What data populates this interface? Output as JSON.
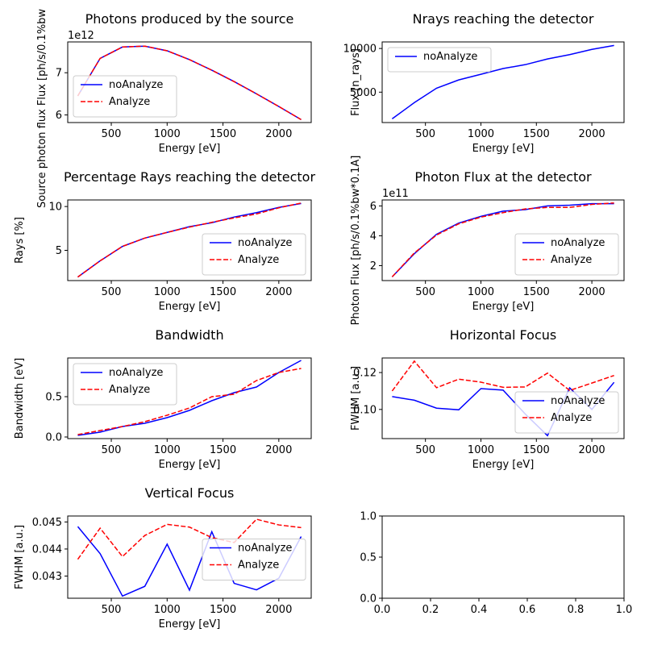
{
  "chart_data": [
    {
      "type": "line",
      "title": "Photons produced by the source",
      "xlabel": "Energy [eV]",
      "ylabel": "Source photon flux Flux [ph/s/0.1%bw",
      "offset_text": "1e12",
      "xlim": [
        110,
        2290
      ],
      "ylim": [
        5.82,
        7.73
      ],
      "xticks": [
        {
          "v": 500,
          "label": "500"
        },
        {
          "v": 1000,
          "label": "1000"
        },
        {
          "v": 1500,
          "label": "1500"
        },
        {
          "v": 2000,
          "label": "2000"
        }
      ],
      "yticks": [
        {
          "v": 6,
          "label": "6"
        },
        {
          "v": 7,
          "label": "7"
        }
      ],
      "legend": "lower-left",
      "series": [
        {
          "name": "noAnalyze",
          "color": "#0000ff",
          "style": "solid",
          "x": [
            200,
            400,
            600,
            800,
            1000,
            1200,
            1400,
            1600,
            1800,
            2000,
            2200
          ],
          "y": [
            6.45,
            7.34,
            7.61,
            7.63,
            7.52,
            7.31,
            7.06,
            6.79,
            6.5,
            6.2,
            5.89
          ]
        },
        {
          "name": "Analyze",
          "color": "#ff0000",
          "style": "dashed",
          "x": [
            200,
            400,
            600,
            800,
            1000,
            1200,
            1400,
            1600,
            1800,
            2000,
            2200
          ],
          "y": [
            6.45,
            7.34,
            7.61,
            7.63,
            7.52,
            7.31,
            7.06,
            6.79,
            6.5,
            6.2,
            5.89
          ]
        }
      ]
    },
    {
      "type": "line",
      "title": "Nrays reaching the detector",
      "xlabel": "Energy [eV]",
      "ylabel": "Flux [n_rays]",
      "offset_text": "",
      "xlim": [
        110,
        2290
      ],
      "ylim": [
        1520,
        10750
      ],
      "xticks": [
        {
          "v": 500,
          "label": "500"
        },
        {
          "v": 1000,
          "label": "1000"
        },
        {
          "v": 1500,
          "label": "1500"
        },
        {
          "v": 2000,
          "label": "2000"
        }
      ],
      "yticks": [
        {
          "v": 5000,
          "label": "5000"
        },
        {
          "v": 10000,
          "label": "10000"
        }
      ],
      "legend": "upper-left",
      "series": [
        {
          "name": "noAnalyze",
          "color": "#0000ff",
          "style": "solid",
          "x": [
            200,
            400,
            600,
            800,
            1000,
            1200,
            1400,
            1600,
            1800,
            2000,
            2200
          ],
          "y": [
            1950,
            3800,
            5450,
            6400,
            7050,
            7700,
            8150,
            8800,
            9300,
            9900,
            10350
          ]
        }
      ]
    },
    {
      "type": "line",
      "title": "Percentage Rays reaching the detector",
      "xlabel": "Energy [eV]",
      "ylabel": "Rays [%]",
      "offset_text": "",
      "xlim": [
        110,
        2290
      ],
      "ylim": [
        1.55,
        10.75
      ],
      "xticks": [
        {
          "v": 500,
          "label": "500"
        },
        {
          "v": 1000,
          "label": "1000"
        },
        {
          "v": 1500,
          "label": "1500"
        },
        {
          "v": 2000,
          "label": "2000"
        }
      ],
      "yticks": [
        {
          "v": 5,
          "label": "5"
        },
        {
          "v": 10,
          "label": "10"
        }
      ],
      "legend": "lower-right",
      "series": [
        {
          "name": "noAnalyze",
          "color": "#0000ff",
          "style": "solid",
          "x": [
            200,
            400,
            600,
            800,
            1000,
            1200,
            1400,
            1600,
            1800,
            2000,
            2200
          ],
          "y": [
            1.95,
            3.8,
            5.45,
            6.4,
            7.05,
            7.7,
            8.15,
            8.8,
            9.3,
            9.9,
            10.35
          ]
        },
        {
          "name": "Analyze",
          "color": "#ff0000",
          "style": "dashed",
          "x": [
            200,
            400,
            600,
            800,
            1000,
            1200,
            1400,
            1600,
            1800,
            2000,
            2200
          ],
          "y": [
            1.95,
            3.8,
            5.45,
            6.4,
            7.05,
            7.65,
            8.2,
            8.7,
            9.15,
            9.85,
            10.4
          ]
        }
      ]
    },
    {
      "type": "line",
      "title": "Photon Flux at the detector",
      "xlabel": "Energy [eV]",
      "ylabel": "Photon Flux [ph/s/0.1%bw*0.1A]",
      "offset_text": "1e11",
      "xlim": [
        110,
        2290
      ],
      "ylim": [
        1.0,
        6.4
      ],
      "xticks": [
        {
          "v": 500,
          "label": "500"
        },
        {
          "v": 1000,
          "label": "1000"
        },
        {
          "v": 1500,
          "label": "1500"
        },
        {
          "v": 2000,
          "label": "2000"
        }
      ],
      "yticks": [
        {
          "v": 2,
          "label": "2"
        },
        {
          "v": 4,
          "label": "4"
        },
        {
          "v": 6,
          "label": "6"
        }
      ],
      "legend": "lower-right",
      "series": [
        {
          "name": "noAnalyze",
          "color": "#0000ff",
          "style": "solid",
          "x": [
            200,
            400,
            600,
            800,
            1000,
            1200,
            1400,
            1600,
            1800,
            2000,
            2200
          ],
          "y": [
            1.25,
            2.8,
            4.1,
            4.85,
            5.3,
            5.65,
            5.75,
            6.0,
            6.05,
            6.15,
            6.15
          ]
        },
        {
          "name": "Analyze",
          "color": "#ff0000",
          "style": "dashed",
          "x": [
            200,
            400,
            600,
            800,
            1000,
            1200,
            1400,
            1600,
            1800,
            2000,
            2200
          ],
          "y": [
            1.25,
            2.85,
            4.05,
            4.8,
            5.25,
            5.55,
            5.8,
            5.9,
            5.9,
            6.1,
            6.2
          ]
        }
      ]
    },
    {
      "type": "line",
      "title": "Bandwidth",
      "xlabel": "Energy [eV]",
      "ylabel": "Bandwidth [eV]",
      "offset_text": "",
      "xlim": [
        110,
        2290
      ],
      "ylim": [
        -0.02,
        0.98
      ],
      "xticks": [
        {
          "v": 500,
          "label": "500"
        },
        {
          "v": 1000,
          "label": "1000"
        },
        {
          "v": 1500,
          "label": "1500"
        },
        {
          "v": 2000,
          "label": "2000"
        }
      ],
      "yticks": [
        {
          "v": 0,
          "label": "0.0"
        },
        {
          "v": 0.5,
          "label": "0.5"
        }
      ],
      "legend": "upper-left",
      "series": [
        {
          "name": "noAnalyze",
          "color": "#0000ff",
          "style": "solid",
          "x": [
            200,
            400,
            600,
            800,
            1000,
            1200,
            1400,
            1600,
            1800,
            2000,
            2200
          ],
          "y": [
            0.02,
            0.06,
            0.13,
            0.17,
            0.24,
            0.33,
            0.45,
            0.55,
            0.62,
            0.8,
            0.95
          ]
        },
        {
          "name": "Analyze",
          "color": "#ff0000",
          "style": "dashed",
          "x": [
            200,
            400,
            600,
            800,
            1000,
            1200,
            1400,
            1600,
            1800,
            2000,
            2200
          ],
          "y": [
            0.03,
            0.08,
            0.13,
            0.19,
            0.27,
            0.36,
            0.5,
            0.53,
            0.7,
            0.8,
            0.85
          ]
        }
      ]
    },
    {
      "type": "line",
      "title": "Horizontal Focus",
      "xlabel": "Energy [eV]",
      "ylabel": "FWHM [a.u.]",
      "offset_text": "",
      "xlim": [
        110,
        2290
      ],
      "ylim": [
        0.0842,
        0.1279
      ],
      "xticks": [
        {
          "v": 500,
          "label": "500"
        },
        {
          "v": 1000,
          "label": "1000"
        },
        {
          "v": 1500,
          "label": "1500"
        },
        {
          "v": 2000,
          "label": "2000"
        }
      ],
      "yticks": [
        {
          "v": 0.1,
          "label": "0.10"
        },
        {
          "v": 0.12,
          "label": "0.12"
        }
      ],
      "legend": "lower-right",
      "series": [
        {
          "name": "noAnalyze",
          "color": "#0000ff",
          "style": "solid",
          "x": [
            200,
            400,
            600,
            800,
            1000,
            1200,
            1400,
            1600,
            1800,
            2000,
            2200
          ],
          "y": [
            0.107,
            0.105,
            0.1007,
            0.0998,
            0.1113,
            0.1105,
            0.0975,
            0.0858,
            0.1117,
            0.1,
            0.1147
          ]
        },
        {
          "name": "Analyze",
          "color": "#ff0000",
          "style": "dashed",
          "x": [
            200,
            400,
            600,
            800,
            1000,
            1200,
            1400,
            1600,
            1800,
            2000,
            2200
          ],
          "y": [
            0.11,
            0.1262,
            0.1118,
            0.1164,
            0.1148,
            0.112,
            0.1122,
            0.1197,
            0.1103,
            0.1143,
            0.1184
          ]
        }
      ]
    },
    {
      "type": "line",
      "title": "Vertical Focus",
      "xlabel": "Energy [eV]",
      "ylabel": "FWHM [a.u.]",
      "offset_text": "",
      "xlim": [
        110,
        2290
      ],
      "ylim": [
        0.04218,
        0.04522
      ],
      "xticks": [
        {
          "v": 500,
          "label": "500"
        },
        {
          "v": 1000,
          "label": "1000"
        },
        {
          "v": 1500,
          "label": "1500"
        },
        {
          "v": 2000,
          "label": "2000"
        }
      ],
      "yticks": [
        {
          "v": 0.043,
          "label": "0.043"
        },
        {
          "v": 0.044,
          "label": "0.044"
        },
        {
          "v": 0.045,
          "label": "0.045"
        }
      ],
      "legend": "right",
      "series": [
        {
          "name": "noAnalyze",
          "color": "#0000ff",
          "style": "solid",
          "x": [
            200,
            400,
            600,
            800,
            1000,
            1200,
            1400,
            1600,
            1800,
            2000,
            2200
          ],
          "y": [
            0.04483,
            0.04383,
            0.04226,
            0.04262,
            0.04418,
            0.04248,
            0.04464,
            0.04273,
            0.04249,
            0.04292,
            0.04446
          ]
        },
        {
          "name": "Analyze",
          "color": "#ff0000",
          "style": "dashed",
          "x": [
            200,
            400,
            600,
            800,
            1000,
            1200,
            1400,
            1600,
            1800,
            2000,
            2200
          ],
          "y": [
            0.04362,
            0.04477,
            0.04372,
            0.0445,
            0.04491,
            0.04481,
            0.04442,
            0.04424,
            0.0451,
            0.04489,
            0.04479
          ]
        }
      ]
    },
    {
      "type": "line",
      "title": "",
      "xlabel": "",
      "ylabel": "",
      "offset_text": "",
      "xlim": [
        0,
        1
      ],
      "ylim": [
        0,
        1
      ],
      "xticks": [
        {
          "v": 0,
          "label": "0.0"
        },
        {
          "v": 0.2,
          "label": "0.2"
        },
        {
          "v": 0.4,
          "label": "0.4"
        },
        {
          "v": 0.6,
          "label": "0.6"
        },
        {
          "v": 0.8,
          "label": "0.8"
        },
        {
          "v": 1,
          "label": "1.0"
        }
      ],
      "yticks": [
        {
          "v": 0,
          "label": "0.0"
        },
        {
          "v": 0.5,
          "label": "0.5"
        },
        {
          "v": 1,
          "label": "1.0"
        }
      ],
      "legend": "none",
      "series": []
    }
  ]
}
